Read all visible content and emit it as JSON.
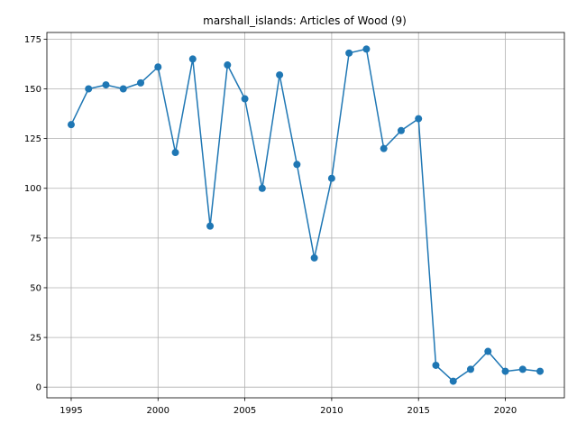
{
  "chart_data": {
    "type": "line",
    "title": "marshall_islands: Articles of Wood (9)",
    "xlabel": "",
    "ylabel": "",
    "xlim": [
      1993.6,
      2023.4
    ],
    "ylim": [
      -5.35,
      178.35
    ],
    "grid": true,
    "x_ticks": [
      1995,
      2000,
      2005,
      2010,
      2015,
      2020
    ],
    "y_ticks": [
      0,
      25,
      50,
      75,
      100,
      125,
      150,
      175
    ],
    "series": [
      {
        "color": "#1f77b4",
        "marker": "circle",
        "x": [
          1995,
          1996,
          1997,
          1998,
          1999,
          2000,
          2001,
          2002,
          2003,
          2004,
          2005,
          2006,
          2007,
          2008,
          2009,
          2010,
          2011,
          2012,
          2013,
          2014,
          2015,
          2016,
          2017,
          2018,
          2019,
          2020,
          2021,
          2022
        ],
        "y": [
          132,
          150,
          152,
          150,
          153,
          161,
          118,
          165,
          81,
          162,
          145,
          100,
          157,
          112,
          65,
          105,
          168,
          170,
          120,
          129,
          135,
          11,
          3,
          9,
          18,
          8,
          9,
          8
        ]
      }
    ]
  }
}
